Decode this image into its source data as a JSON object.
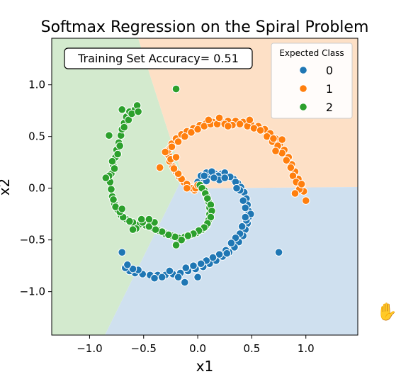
{
  "chart_data": {
    "type": "scatter",
    "title": "Softmax Regression on the Spiral Problem",
    "xlabel": "x1",
    "ylabel": "x2",
    "xlim": [
      -1.35,
      1.48
    ],
    "ylim": [
      -1.42,
      1.45
    ],
    "xticks": [
      -1.0,
      -0.5,
      0.0,
      0.5,
      1.0
    ],
    "yticks": [
      -1.0,
      -0.5,
      0.0,
      0.5,
      1.0
    ],
    "xtick_labels": [
      "−1.0",
      "−0.5",
      "0.0",
      "0.5",
      "1.0"
    ],
    "ytick_labels": [
      "−1.0",
      "−0.5",
      "0.0",
      "0.5",
      "1.0"
    ],
    "annotation": "Training Set Accuracy= 0.51",
    "legend": {
      "title": "Expected Class",
      "placement": "upper right"
    },
    "regions": [
      {
        "name": "0",
        "color": "#cfe0ef"
      },
      {
        "name": "1",
        "color": "#fde0c6"
      },
      {
        "name": "2",
        "color": "#d3eace"
      }
    ],
    "series": [
      {
        "name": "0",
        "color": "#1f77b4",
        "points": [
          [
            0.0,
            0.06
          ],
          [
            0.05,
            0.1
          ],
          [
            0.1,
            0.13
          ],
          [
            0.16,
            0.14
          ],
          [
            0.22,
            0.14
          ],
          [
            0.28,
            0.12
          ],
          [
            0.33,
            0.09
          ],
          [
            0.37,
            0.05
          ],
          [
            0.4,
            0.01
          ],
          [
            0.43,
            -0.04
          ],
          [
            0.45,
            -0.1
          ],
          [
            0.46,
            -0.16
          ],
          [
            0.47,
            -0.22
          ],
          [
            0.47,
            -0.28
          ],
          [
            0.46,
            -0.34
          ],
          [
            0.44,
            -0.4
          ],
          [
            0.42,
            -0.46
          ],
          [
            0.38,
            -0.52
          ],
          [
            0.34,
            -0.57
          ],
          [
            0.29,
            -0.62
          ],
          [
            0.23,
            -0.66
          ],
          [
            0.17,
            -0.7
          ],
          [
            0.11,
            -0.73
          ],
          [
            0.05,
            -0.76
          ],
          [
            -0.02,
            -0.78
          ],
          [
            -0.09,
            -0.8
          ],
          [
            -0.16,
            -0.82
          ],
          [
            -0.23,
            -0.83
          ],
          [
            -0.3,
            -0.84
          ],
          [
            -0.37,
            -0.84
          ],
          [
            -0.44,
            -0.84
          ],
          [
            -0.51,
            -0.83
          ],
          [
            -0.58,
            -0.82
          ],
          [
            -0.63,
            -0.8
          ],
          [
            -0.67,
            -0.77
          ],
          [
            -0.7,
            -0.62
          ],
          [
            0.03,
            0.12
          ],
          [
            0.08,
            0.15
          ],
          [
            0.13,
            0.16
          ],
          [
            0.19,
            0.12
          ],
          [
            0.25,
            0.15
          ],
          [
            0.3,
            0.11
          ],
          [
            0.35,
            0.06
          ],
          [
            0.39,
            -0.02
          ],
          [
            0.42,
            -0.12
          ],
          [
            0.44,
            -0.19
          ],
          [
            0.49,
            -0.25
          ],
          [
            0.45,
            -0.31
          ],
          [
            0.41,
            -0.37
          ],
          [
            0.39,
            -0.44
          ],
          [
            0.35,
            -0.48
          ],
          [
            0.31,
            -0.53
          ],
          [
            0.26,
            -0.6
          ],
          [
            0.2,
            -0.64
          ],
          [
            0.14,
            -0.67
          ],
          [
            0.08,
            -0.7
          ],
          [
            0.03,
            -0.73
          ],
          [
            -0.04,
            -0.75
          ],
          [
            -0.11,
            -0.77
          ],
          [
            -0.18,
            -0.86
          ],
          [
            -0.26,
            -0.8
          ],
          [
            -0.33,
            -0.86
          ],
          [
            -0.4,
            -0.87
          ],
          [
            -0.55,
            -0.79
          ],
          [
            -0.6,
            -0.78
          ],
          [
            -0.65,
            -0.74
          ],
          [
            0.2,
            0.08
          ],
          [
            0.25,
            0.1
          ],
          [
            0.08,
            0.07
          ],
          [
            0.15,
            0.1
          ],
          [
            0.27,
            -0.63
          ],
          [
            0.0,
            -0.86
          ],
          [
            -0.12,
            -0.91
          ],
          [
            0.06,
            0.12
          ],
          [
            0.36,
            0.0
          ],
          [
            0.44,
            -0.28
          ],
          [
            0.75,
            -0.62
          ]
        ]
      },
      {
        "name": "1",
        "color": "#ff7f0e",
        "points": [
          [
            -0.03,
            -0.02
          ],
          [
            -0.08,
            0.02
          ],
          [
            -0.13,
            0.06
          ],
          [
            -0.17,
            0.11
          ],
          [
            -0.2,
            0.16
          ],
          [
            -0.23,
            0.21
          ],
          [
            -0.26,
            0.26
          ],
          [
            -0.27,
            0.32
          ],
          [
            -0.26,
            0.38
          ],
          [
            -0.24,
            0.43
          ],
          [
            -0.2,
            0.48
          ],
          [
            -0.15,
            0.52
          ],
          [
            -0.1,
            0.55
          ],
          [
            -0.04,
            0.58
          ],
          [
            0.02,
            0.61
          ],
          [
            0.08,
            0.63
          ],
          [
            0.14,
            0.64
          ],
          [
            0.21,
            0.65
          ],
          [
            0.28,
            0.65
          ],
          [
            0.35,
            0.65
          ],
          [
            0.42,
            0.64
          ],
          [
            0.49,
            0.62
          ],
          [
            0.56,
            0.6
          ],
          [
            0.62,
            0.57
          ],
          [
            0.67,
            0.53
          ],
          [
            0.72,
            0.48
          ],
          [
            0.76,
            0.43
          ],
          [
            0.8,
            0.37
          ],
          [
            0.84,
            0.3
          ],
          [
            0.87,
            0.23
          ],
          [
            0.9,
            0.16
          ],
          [
            0.93,
            0.09
          ],
          [
            0.96,
            0.03
          ],
          [
            0.98,
            -0.03
          ],
          [
            1.0,
            -0.12
          ],
          [
            -0.05,
            0.0
          ],
          [
            -0.1,
            0.04
          ],
          [
            -0.15,
            0.09
          ],
          [
            -0.18,
            0.14
          ],
          [
            -0.22,
            0.19
          ],
          [
            -0.25,
            0.28
          ],
          [
            -0.28,
            0.36
          ],
          [
            -0.24,
            0.4
          ],
          [
            -0.18,
            0.45
          ],
          [
            -0.12,
            0.5
          ],
          [
            -0.06,
            0.54
          ],
          [
            0.0,
            0.57
          ],
          [
            0.06,
            0.6
          ],
          [
            0.12,
            0.62
          ],
          [
            0.18,
            0.62
          ],
          [
            0.25,
            0.62
          ],
          [
            0.32,
            0.61
          ],
          [
            0.39,
            0.62
          ],
          [
            0.46,
            0.6
          ],
          [
            0.52,
            0.58
          ],
          [
            0.58,
            0.56
          ],
          [
            0.64,
            0.5
          ],
          [
            0.69,
            0.45
          ],
          [
            0.74,
            0.41
          ],
          [
            0.78,
            0.34
          ],
          [
            0.82,
            0.27
          ],
          [
            0.86,
            0.2
          ],
          [
            0.88,
            0.12
          ],
          [
            0.91,
            0.06
          ],
          [
            0.94,
            -0.01
          ],
          [
            0.96,
            0.04
          ],
          [
            0.9,
            -0.05
          ],
          [
            -0.1,
            0.0
          ],
          [
            -0.3,
            0.35
          ],
          [
            -0.35,
            0.2
          ],
          [
            -0.2,
            0.3
          ],
          [
            0.1,
            0.66
          ],
          [
            0.2,
            0.68
          ],
          [
            0.48,
            0.66
          ],
          [
            0.7,
            0.48
          ],
          [
            0.78,
            0.47
          ],
          [
            0.72,
            0.36
          ],
          [
            0.28,
            0.6
          ],
          [
            -0.02,
            0.0
          ],
          [
            0.0,
            0.03
          ]
        ]
      },
      {
        "name": "2",
        "color": "#2ca02c",
        "points": [
          [
            0.02,
            0.03
          ],
          [
            0.06,
            -0.02
          ],
          [
            0.08,
            -0.07
          ],
          [
            0.1,
            -0.13
          ],
          [
            0.11,
            -0.19
          ],
          [
            0.11,
            -0.25
          ],
          [
            0.1,
            -0.31
          ],
          [
            0.08,
            -0.36
          ],
          [
            0.04,
            -0.4
          ],
          [
            -0.01,
            -0.43
          ],
          [
            -0.06,
            -0.45
          ],
          [
            -0.12,
            -0.47
          ],
          [
            -0.18,
            -0.48
          ],
          [
            -0.24,
            -0.46
          ],
          [
            -0.3,
            -0.44
          ],
          [
            -0.36,
            -0.41
          ],
          [
            -0.42,
            -0.38
          ],
          [
            -0.48,
            -0.36
          ],
          [
            -0.54,
            -0.35
          ],
          [
            -0.6,
            -0.33
          ],
          [
            -0.66,
            -0.3
          ],
          [
            -0.71,
            -0.26
          ],
          [
            -0.74,
            -0.21
          ],
          [
            -0.77,
            -0.15
          ],
          [
            -0.79,
            -0.08
          ],
          [
            -0.8,
            -0.01
          ],
          [
            -0.81,
            0.06
          ],
          [
            -0.8,
            0.14
          ],
          [
            -0.78,
            0.22
          ],
          [
            -0.76,
            0.3
          ],
          [
            -0.75,
            0.37
          ],
          [
            -0.73,
            0.44
          ],
          [
            -0.71,
            0.51
          ],
          [
            -0.7,
            0.57
          ],
          [
            -0.68,
            0.63
          ],
          [
            -0.66,
            0.69
          ],
          [
            -0.63,
            0.74
          ],
          [
            -0.58,
            0.76
          ],
          [
            -0.56,
            0.8
          ],
          [
            0.04,
            0.0
          ],
          [
            0.07,
            -0.05
          ],
          [
            0.09,
            -0.1
          ],
          [
            0.12,
            -0.16
          ],
          [
            0.13,
            -0.22
          ],
          [
            0.12,
            -0.28
          ],
          [
            0.09,
            -0.34
          ],
          [
            0.06,
            -0.38
          ],
          [
            0.01,
            -0.41
          ],
          [
            -0.04,
            -0.44
          ],
          [
            -0.09,
            -0.46
          ],
          [
            -0.15,
            -0.5
          ],
          [
            -0.21,
            -0.47
          ],
          [
            -0.27,
            -0.45
          ],
          [
            -0.33,
            -0.42
          ],
          [
            -0.39,
            -0.4
          ],
          [
            -0.45,
            -0.37
          ],
          [
            -0.51,
            -0.33
          ],
          [
            -0.57,
            -0.39
          ],
          [
            -0.63,
            -0.32
          ],
          [
            -0.69,
            -0.28
          ],
          [
            -0.72,
            -0.23
          ],
          [
            -0.76,
            -0.18
          ],
          [
            -0.78,
            -0.11
          ],
          [
            -0.82,
            0.12
          ],
          [
            -0.85,
            0.1
          ],
          [
            -0.77,
            0.19
          ],
          [
            -0.79,
            0.26
          ],
          [
            -0.74,
            0.33
          ],
          [
            -0.72,
            0.41
          ],
          [
            -0.68,
            0.59
          ],
          [
            -0.64,
            0.66
          ],
          [
            -0.61,
            0.72
          ],
          [
            -0.55,
            0.74
          ],
          [
            -0.82,
            0.51
          ],
          [
            -0.7,
            0.76
          ],
          [
            -0.2,
            0.96
          ],
          [
            -0.6,
            -0.4
          ],
          [
            -0.4,
            -0.33
          ],
          [
            -0.45,
            -0.3
          ],
          [
            -0.7,
            -0.2
          ],
          [
            -0.2,
            -0.55
          ],
          [
            -0.52,
            -0.3
          ]
        ]
      }
    ]
  }
}
